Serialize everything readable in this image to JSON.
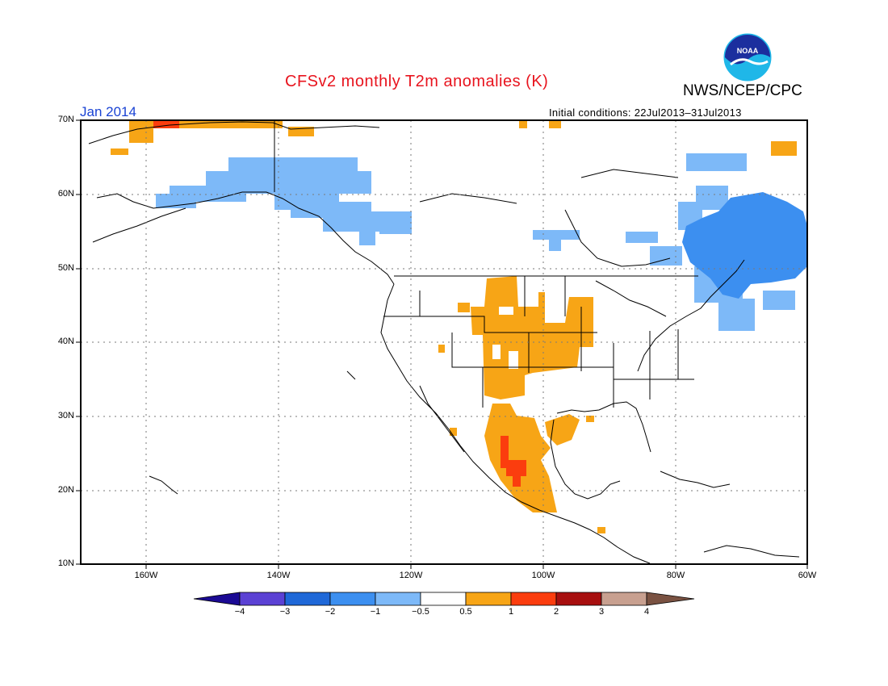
{
  "header": {
    "title": "CFSv2 monthly T2m anomalies (K)",
    "agency": "NWS/NCEP/CPC",
    "logo_text": "NOAA",
    "valid_month": "Jan 2014",
    "initial_conditions": "Initial conditions: 22Jul2013–31Jul2013"
  },
  "map": {
    "projection": "lat-lon",
    "lon_range": [
      -172,
      -60
    ],
    "lat_range": [
      10,
      70
    ],
    "grid": "dotted",
    "lat_labels": [
      "70N",
      "60N",
      "50N",
      "40N",
      "30N",
      "20N",
      "10N"
    ],
    "lon_labels": [
      "160W",
      "140W",
      "120W",
      "100W",
      "80W",
      "60W"
    ],
    "anomaly_regions": [
      {
        "name": "Alaska/NW Canada cool",
        "level": "-1 to -0.5",
        "color": "#7db9f8"
      },
      {
        "name": "Quebec/Labrador cool",
        "level": "-2 to -1",
        "color": "#3c8ff0"
      },
      {
        "name": "Central Plains warm",
        "level": "0.5 to 1",
        "color": "#f7a516"
      },
      {
        "name": "Mexico warm",
        "level": "0.5 to 1",
        "color": "#f7a516"
      },
      {
        "name": "W Mexico hot spot",
        "level": "1 to 2",
        "color": "#fb3d0e"
      },
      {
        "name": "Arctic coast warm",
        "level": "0.5 to 1",
        "color": "#f7a516"
      }
    ]
  },
  "colorbar": {
    "labels": [
      "−4",
      "−3",
      "−2",
      "−1",
      "−0.5",
      "0.5",
      "1",
      "2",
      "3",
      "4"
    ],
    "colors": [
      "#1b0a94",
      "#5b41d4",
      "#1f68d8",
      "#3c8ff0",
      "#7db9f8",
      "#ffffff",
      "#f7a516",
      "#fb3d0e",
      "#a70f0f",
      "#c8a090",
      "#7a5242"
    ]
  }
}
